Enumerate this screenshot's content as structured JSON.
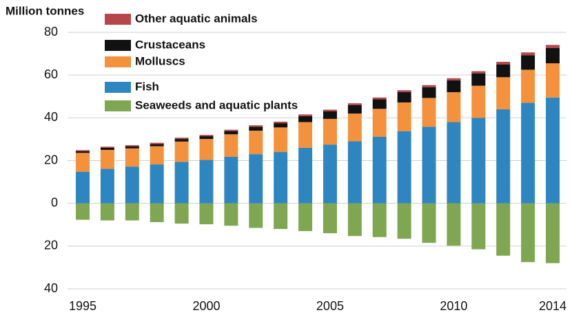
{
  "chart_data": {
    "type": "bar",
    "stacked": true,
    "y_label": "Million tonnes",
    "categories": [
      "1995",
      null,
      null,
      null,
      null,
      "2000",
      null,
      null,
      null,
      null,
      "2005",
      null,
      null,
      null,
      null,
      "2010",
      null,
      null,
      null,
      "2014"
    ],
    "series": [
      {
        "name": "Other aquatic animals",
        "color": "#b5474b",
        "values": [
          0.5,
          0.5,
          0.5,
          0.6,
          0.6,
          0.6,
          0.6,
          0.7,
          0.7,
          0.8,
          0.8,
          0.8,
          0.8,
          0.9,
          1,
          1,
          1,
          1.2,
          1.3,
          1.4
        ]
      },
      {
        "name": "Crustaceans",
        "color": "#111111",
        "values": [
          0.8,
          1,
          1,
          1,
          1.2,
          1.3,
          1.5,
          1.8,
          2,
          2.8,
          3.5,
          4,
          4.5,
          4.8,
          5,
          5.5,
          5.8,
          6,
          6.8,
          7.2
        ]
      },
      {
        "name": "Molluscs",
        "color": "#f4913c",
        "values": [
          8.8,
          8.8,
          8.5,
          8.5,
          9.5,
          9.8,
          10.5,
          11,
          11.5,
          12,
          12,
          13,
          13,
          13.5,
          13.5,
          14,
          15,
          15,
          15.5,
          16
        ]
      },
      {
        "name": "Fish",
        "color": "#2e86c1",
        "values": [
          14.8,
          16.2,
          17.2,
          18.2,
          19.4,
          20.3,
          21.8,
          23,
          24,
          26,
          27.5,
          29,
          31.2,
          33.7,
          35.8,
          38,
          40,
          44,
          47,
          49.5
        ]
      },
      {
        "name": "Seaweeds and aquatic plants",
        "color": "#7fa650",
        "values": [
          -7.7,
          -8,
          -8,
          -8.8,
          -9.5,
          -9.8,
          -10.5,
          -11.5,
          -12,
          -13,
          -14,
          -15.3,
          -15.8,
          -16.6,
          -18.5,
          -19.8,
          -21.5,
          -24.5,
          -27.5,
          -28
        ]
      }
    ],
    "ylim": [
      -40,
      80
    ],
    "yticks": [
      {
        "value": -40,
        "label": "40"
      },
      {
        "value": -20,
        "label": "20"
      },
      0,
      20,
      40,
      60,
      80
    ],
    "grid": true,
    "legend": "top-left"
  }
}
